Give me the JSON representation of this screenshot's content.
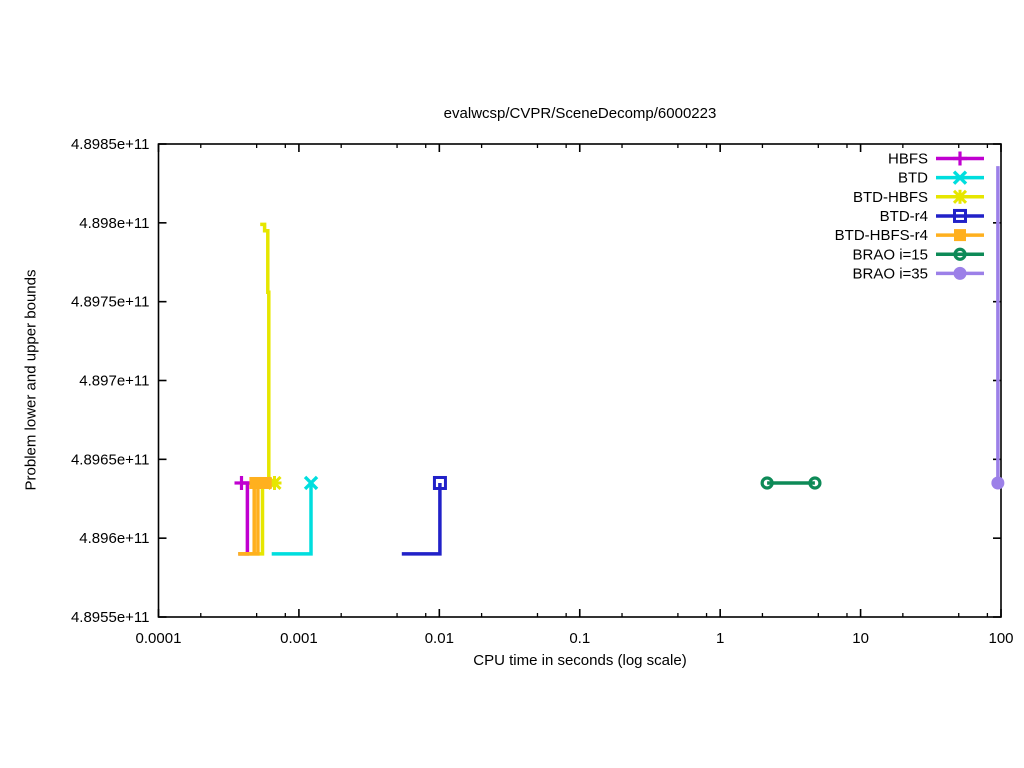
{
  "title": "evalwcsp/CVPR/SceneDecomp/6000223",
  "chart_data": {
    "type": "line",
    "title": "evalwcsp/CVPR/SceneDecomp/6000223",
    "xlabel": "CPU time in seconds (log scale)",
    "ylabel": "Problem lower and upper bounds",
    "x_scale": "log",
    "xlim": [
      0.0001,
      100
    ],
    "ylim": [
      489550000000,
      489850000000
    ],
    "grid": false,
    "legend_position": "top-right-inside",
    "x_ticks": [
      {
        "v": 0.0001,
        "label": "0.0001"
      },
      {
        "v": 0.001,
        "label": "0.001"
      },
      {
        "v": 0.01,
        "label": "0.01"
      },
      {
        "v": 0.1,
        "label": "0.1"
      },
      {
        "v": 1,
        "label": "1"
      },
      {
        "v": 10,
        "label": "10"
      },
      {
        "v": 100,
        "label": "100"
      }
    ],
    "x_minor_multiples": [
      2,
      5,
      8
    ],
    "y_ticks": [
      {
        "v": 489550000000,
        "label": "4.8955e+11"
      },
      {
        "v": 489600000000,
        "label": "4.896e+11"
      },
      {
        "v": 489650000000,
        "label": "4.8965e+11"
      },
      {
        "v": 489700000000,
        "label": "4.897e+11"
      },
      {
        "v": 489750000000,
        "label": "4.8975e+11"
      },
      {
        "v": 489800000000,
        "label": "4.898e+11"
      },
      {
        "v": 489850000000,
        "label": "4.8985e+11"
      }
    ],
    "optimum_value": 489635000000,
    "initial_lower_bound": 489590000000,
    "series": [
      {
        "name": "HBFS",
        "color": "#C000D0",
        "marker": "plus",
        "lines": [
          [
            [
              0.00037,
              489590000000
            ],
            [
              0.00043,
              489590000000
            ],
            [
              0.00043,
              489635000000
            ]
          ],
          [
            [
              0.00039,
              489635000000
            ],
            [
              0.00045,
              489635000000
            ]
          ]
        ],
        "points": [
          [
            0.00039,
            489635000000
          ]
        ]
      },
      {
        "name": "BTD",
        "color": "#00DEDE",
        "marker": "cross",
        "lines": [
          [
            [
              0.00064,
              489590000000
            ],
            [
              0.00122,
              489590000000
            ],
            [
              0.00122,
              489635000000
            ]
          ]
        ],
        "points": [
          [
            0.00122,
            489635000000
          ]
        ]
      },
      {
        "name": "BTD-HBFS",
        "color": "#E6E600",
        "marker": "star",
        "lines": [
          [
            [
              0.00037,
              489590000000
            ],
            [
              0.00055,
              489590000000
            ],
            [
              0.00055,
              489635000000
            ],
            [
              0.00067,
              489635000000
            ]
          ],
          [
            [
              0.00053,
              489799000000
            ],
            [
              0.00057,
              489799000000
            ],
            [
              0.00057,
              489795000000
            ],
            [
              0.0006,
              489795000000
            ],
            [
              0.0006,
              489756000000
            ],
            [
              0.00061,
              489756000000
            ],
            [
              0.00061,
              489635000000
            ],
            [
              0.00067,
              489635000000
            ]
          ]
        ],
        "points": [
          [
            0.00067,
            489635000000
          ]
        ]
      },
      {
        "name": "BTD-r4",
        "color": "#2121C8",
        "marker": "square-open",
        "lines": [
          [
            [
              0.0054,
              489590000000
            ],
            [
              0.0101,
              489590000000
            ],
            [
              0.0101,
              489635000000
            ]
          ]
        ],
        "points": [
          [
            0.0101,
            489635000000
          ]
        ]
      },
      {
        "name": "BTD-HBFS-r4",
        "color": "#FFB01E",
        "marker": "square-filled",
        "lines": [
          [
            [
              0.00037,
              489590000000
            ],
            [
              0.00051,
              489590000000
            ],
            [
              0.00051,
              489635000000
            ],
            [
              0.00058,
              489635000000
            ]
          ],
          [
            [
              0.00048,
              489590000000
            ],
            [
              0.00048,
              489635000000
            ]
          ]
        ],
        "points": [
          [
            0.00049,
            489635000000
          ],
          [
            0.00058,
            489635000000
          ]
        ]
      },
      {
        "name": "BRAO i=15",
        "color": "#0D8A57",
        "marker": "circle-open",
        "lines": [
          [
            [
              2.16,
              489635000000
            ],
            [
              4.73,
              489635000000
            ]
          ]
        ],
        "points": [
          [
            2.16,
            489635000000
          ],
          [
            4.73,
            489635000000
          ]
        ]
      },
      {
        "name": "BRAO i=35",
        "color": "#9C80E8",
        "marker": "circle-filled",
        "lines": [
          [
            [
              95,
              489836000000
            ],
            [
              95,
              489635000000
            ]
          ]
        ],
        "points": [
          [
            95,
            489635000000
          ]
        ]
      }
    ]
  }
}
